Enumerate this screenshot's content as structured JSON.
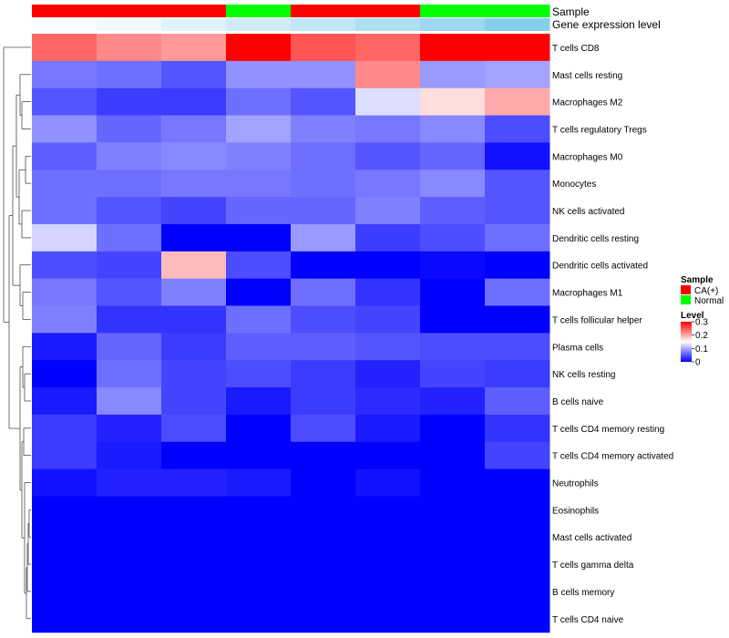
{
  "chart_data": {
    "type": "heatmap",
    "title": "",
    "annotation_tracks": [
      "Sample",
      "Gene expression level"
    ],
    "columns": [
      {
        "sample": "CA(+)",
        "expression_level": 0.03
      },
      {
        "sample": "CA(+)",
        "expression_level": 0.06
      },
      {
        "sample": "CA(+)",
        "expression_level": 0.13
      },
      {
        "sample": "Normal",
        "expression_level": 0.2
      },
      {
        "sample": "CA(+)",
        "expression_level": 0.27
      },
      {
        "sample": "CA(+)",
        "expression_level": 0.35
      },
      {
        "sample": "Normal",
        "expression_level": 0.42
      },
      {
        "sample": "Normal",
        "expression_level": 0.52
      }
    ],
    "rows": [
      "T cells CD8",
      "Mast cells resting",
      "Macrophages M2",
      "T cells regulatory  Tregs",
      "Macrophages M0",
      "Monocytes",
      "NK cells activated",
      "Dendritic cells resting",
      "Dendritic cells activated",
      "Macrophages M1",
      "T cells follicular helper",
      "Plasma cells",
      "NK cells resting",
      "B cells naive",
      "T cells CD4 memory resting",
      "T cells CD4 memory activated",
      "Neutrophils",
      "Eosinophils",
      "Mast cells activated",
      "T cells gamma delta",
      "B cells memory",
      "T cells CD4 naive"
    ],
    "values": [
      [
        0.24,
        0.22,
        0.21,
        0.3,
        0.25,
        0.24,
        0.3,
        0.3
      ],
      [
        0.07,
        0.065,
        0.05,
        0.085,
        0.085,
        0.22,
        0.09,
        0.095
      ],
      [
        0.05,
        0.035,
        0.035,
        0.065,
        0.05,
        0.13,
        0.17,
        0.2
      ],
      [
        0.085,
        0.06,
        0.07,
        0.095,
        0.075,
        0.07,
        0.08,
        0.045
      ],
      [
        0.055,
        0.075,
        0.08,
        0.075,
        0.065,
        0.05,
        0.06,
        0.01
      ],
      [
        0.065,
        0.065,
        0.07,
        0.07,
        0.065,
        0.07,
        0.08,
        0.05
      ],
      [
        0.065,
        0.05,
        0.04,
        0.06,
        0.06,
        0.075,
        0.055,
        0.05
      ],
      [
        0.125,
        0.065,
        0.0,
        0.0,
        0.09,
        0.035,
        0.045,
        0.065
      ],
      [
        0.045,
        0.04,
        0.19,
        0.045,
        0.0,
        0.0,
        0.005,
        0.0
      ],
      [
        0.07,
        0.05,
        0.075,
        0.0,
        0.065,
        0.03,
        0.0,
        0.065
      ],
      [
        0.075,
        0.03,
        0.03,
        0.065,
        0.045,
        0.04,
        0.0,
        0.0
      ],
      [
        0.015,
        0.06,
        0.035,
        0.055,
        0.055,
        0.05,
        0.045,
        0.045
      ],
      [
        0.0,
        0.065,
        0.04,
        0.045,
        0.035,
        0.02,
        0.04,
        0.035
      ],
      [
        0.015,
        0.08,
        0.04,
        0.015,
        0.035,
        0.025,
        0.02,
        0.055
      ],
      [
        0.035,
        0.02,
        0.045,
        0.0,
        0.045,
        0.015,
        0.0,
        0.03
      ],
      [
        0.035,
        0.015,
        0.0,
        0.0,
        0.0,
        0.0,
        0.0,
        0.04
      ],
      [
        0.01,
        0.02,
        0.02,
        0.015,
        0.0,
        0.01,
        0.0,
        0.0
      ],
      [
        0.0,
        0.0,
        0.0,
        0.0,
        0.0,
        0.0,
        0.0,
        0.0
      ],
      [
        0.0,
        0.0,
        0.0,
        0.0,
        0.0,
        0.0,
        0.0,
        0.0
      ],
      [
        0.0,
        0.0,
        0.0,
        0.0,
        0.0,
        0.0,
        0.0,
        0.0
      ],
      [
        0.0,
        0.0,
        0.0,
        0.0,
        0.0,
        0.0,
        0.0,
        0.0
      ],
      [
        0.0,
        0.0,
        0.0,
        0.0,
        0.0,
        0.0,
        0.0,
        0.0
      ]
    ],
    "color_scale": {
      "stops": [
        {
          "value": 0,
          "color": "#0000ff"
        },
        {
          "value": 0.15,
          "color": "#ffffff"
        },
        {
          "value": 0.3,
          "color": "#ff0000"
        }
      ],
      "range": [
        0,
        0.3
      ]
    },
    "expression_scale": {
      "low": "#ffffff",
      "high": "#87ceeb",
      "range": [
        0,
        0.52
      ]
    },
    "legend": {
      "sample_title": "Sample",
      "sample_entries": [
        {
          "label": "CA(+)",
          "color": "#ff0000"
        },
        {
          "label": "Normal",
          "color": "#00ff00"
        }
      ],
      "level_title": "Level",
      "level_ticks": [
        "0.3",
        "0.2",
        "0.1",
        "0"
      ],
      "level_tick_values": [
        0.3,
        0.2,
        0.1,
        0
      ],
      "placement": "right"
    },
    "row_dendrogram": true
  }
}
